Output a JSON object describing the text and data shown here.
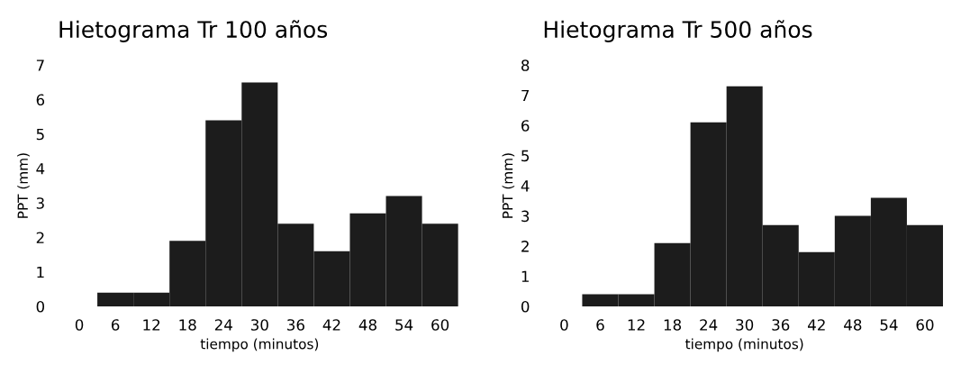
{
  "chart_data": [
    {
      "type": "bar",
      "title": "Hietograma Tr 100 años",
      "xlabel": "tiempo (minutos)",
      "ylabel": "PPT (mm)",
      "categories": [
        "0",
        "6",
        "12",
        "18",
        "24",
        "30",
        "36",
        "42",
        "48",
        "54",
        "60"
      ],
      "values": [
        0,
        0.4,
        0.4,
        1.9,
        5.4,
        6.5,
        2.4,
        1.6,
        2.7,
        3.2,
        2.4
      ],
      "color": "#1c1c1c",
      "ylim": [
        0,
        7
      ],
      "yticks": [
        0,
        1,
        2,
        3,
        4,
        5,
        6,
        7
      ]
    },
    {
      "type": "bar",
      "title": "Hietograma Tr 500 años",
      "xlabel": "tiempo (minutos)",
      "ylabel": "PPT (mm)",
      "categories": [
        "0",
        "6",
        "12",
        "18",
        "24",
        "30",
        "36",
        "42",
        "48",
        "54",
        "60"
      ],
      "values": [
        0,
        0.4,
        0.4,
        2.1,
        6.1,
        7.3,
        2.7,
        1.8,
        3.0,
        3.6,
        2.7
      ],
      "color": "#1c1c1c",
      "ylim": [
        0,
        8
      ],
      "yticks": [
        0,
        1,
        2,
        3,
        4,
        5,
        6,
        7,
        8
      ]
    }
  ]
}
